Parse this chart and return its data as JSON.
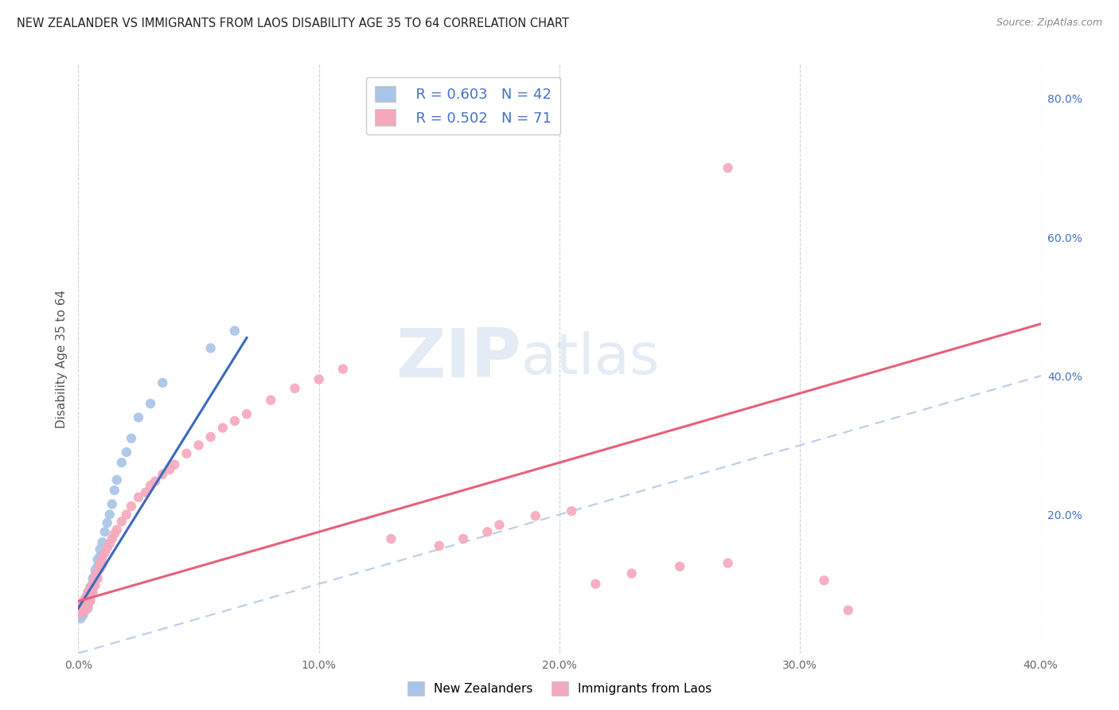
{
  "title": "NEW ZEALANDER VS IMMIGRANTS FROM LAOS DISABILITY AGE 35 TO 64 CORRELATION CHART",
  "source": "Source: ZipAtlas.com",
  "ylabel": "Disability Age 35 to 64",
  "xlim": [
    0.0,
    0.4
  ],
  "ylim": [
    0.0,
    0.85
  ],
  "xticks": [
    0.0,
    0.1,
    0.2,
    0.3,
    0.4
  ],
  "xtick_labels": [
    "0.0%",
    "10.0%",
    "20.0%",
    "30.0%",
    "40.0%"
  ],
  "yticks_right": [
    0.2,
    0.4,
    0.6,
    0.8
  ],
  "ytick_labels_right": [
    "20.0%",
    "40.0%",
    "60.0%",
    "80.0%"
  ],
  "nz_color": "#a8c4e8",
  "laos_color": "#f5a8bc",
  "nz_line_color": "#3a6abf",
  "laos_line_color": "#e8607a",
  "diagonal_color": "#b0c8e8",
  "R_nz": 0.603,
  "N_nz": 42,
  "R_laos": 0.502,
  "N_laos": 71,
  "legend_text_color": "#4472c4",
  "watermark_color": "#c8d8ea",
  "nz_line_x0": 0.0,
  "nz_line_y0": 0.065,
  "nz_line_x1": 0.07,
  "nz_line_y1": 0.455,
  "laos_line_x0": 0.0,
  "laos_line_y0": 0.075,
  "laos_line_x1": 0.4,
  "laos_line_y1": 0.475,
  "nz_x": [
    0.001,
    0.001,
    0.001,
    0.002,
    0.002,
    0.002,
    0.002,
    0.003,
    0.003,
    0.003,
    0.003,
    0.004,
    0.004,
    0.004,
    0.004,
    0.005,
    0.005,
    0.005,
    0.006,
    0.006,
    0.006,
    0.007,
    0.007,
    0.008,
    0.008,
    0.009,
    0.009,
    0.01,
    0.011,
    0.012,
    0.013,
    0.014,
    0.015,
    0.016,
    0.018,
    0.02,
    0.022,
    0.025,
    0.03,
    0.035,
    0.055,
    0.065
  ],
  "nz_y": [
    0.05,
    0.055,
    0.06,
    0.055,
    0.06,
    0.065,
    0.07,
    0.062,
    0.068,
    0.072,
    0.078,
    0.065,
    0.075,
    0.08,
    0.088,
    0.082,
    0.09,
    0.095,
    0.095,
    0.1,
    0.108,
    0.11,
    0.12,
    0.125,
    0.135,
    0.14,
    0.15,
    0.16,
    0.175,
    0.188,
    0.2,
    0.215,
    0.235,
    0.25,
    0.275,
    0.29,
    0.31,
    0.34,
    0.36,
    0.39,
    0.44,
    0.465
  ],
  "laos_x": [
    0.001,
    0.001,
    0.001,
    0.002,
    0.002,
    0.002,
    0.002,
    0.003,
    0.003,
    0.003,
    0.003,
    0.004,
    0.004,
    0.004,
    0.004,
    0.005,
    0.005,
    0.005,
    0.005,
    0.006,
    0.006,
    0.006,
    0.007,
    0.007,
    0.007,
    0.008,
    0.008,
    0.009,
    0.009,
    0.01,
    0.01,
    0.011,
    0.012,
    0.013,
    0.014,
    0.015,
    0.016,
    0.018,
    0.02,
    0.022,
    0.025,
    0.028,
    0.03,
    0.032,
    0.035,
    0.038,
    0.04,
    0.045,
    0.05,
    0.055,
    0.06,
    0.065,
    0.07,
    0.08,
    0.09,
    0.1,
    0.11,
    0.13,
    0.15,
    0.16,
    0.17,
    0.175,
    0.19,
    0.205,
    0.215,
    0.23,
    0.25,
    0.27,
    0.31,
    0.32,
    0.27
  ],
  "laos_y": [
    0.058,
    0.063,
    0.07,
    0.06,
    0.065,
    0.07,
    0.075,
    0.063,
    0.068,
    0.072,
    0.08,
    0.068,
    0.075,
    0.082,
    0.088,
    0.075,
    0.082,
    0.09,
    0.095,
    0.088,
    0.095,
    0.1,
    0.098,
    0.105,
    0.112,
    0.108,
    0.118,
    0.122,
    0.13,
    0.128,
    0.138,
    0.145,
    0.152,
    0.158,
    0.165,
    0.172,
    0.178,
    0.19,
    0.2,
    0.212,
    0.225,
    0.232,
    0.242,
    0.248,
    0.258,
    0.265,
    0.272,
    0.288,
    0.3,
    0.312,
    0.325,
    0.335,
    0.345,
    0.365,
    0.382,
    0.395,
    0.41,
    0.165,
    0.155,
    0.165,
    0.175,
    0.185,
    0.198,
    0.205,
    0.1,
    0.115,
    0.125,
    0.13,
    0.105,
    0.062,
    0.7
  ]
}
